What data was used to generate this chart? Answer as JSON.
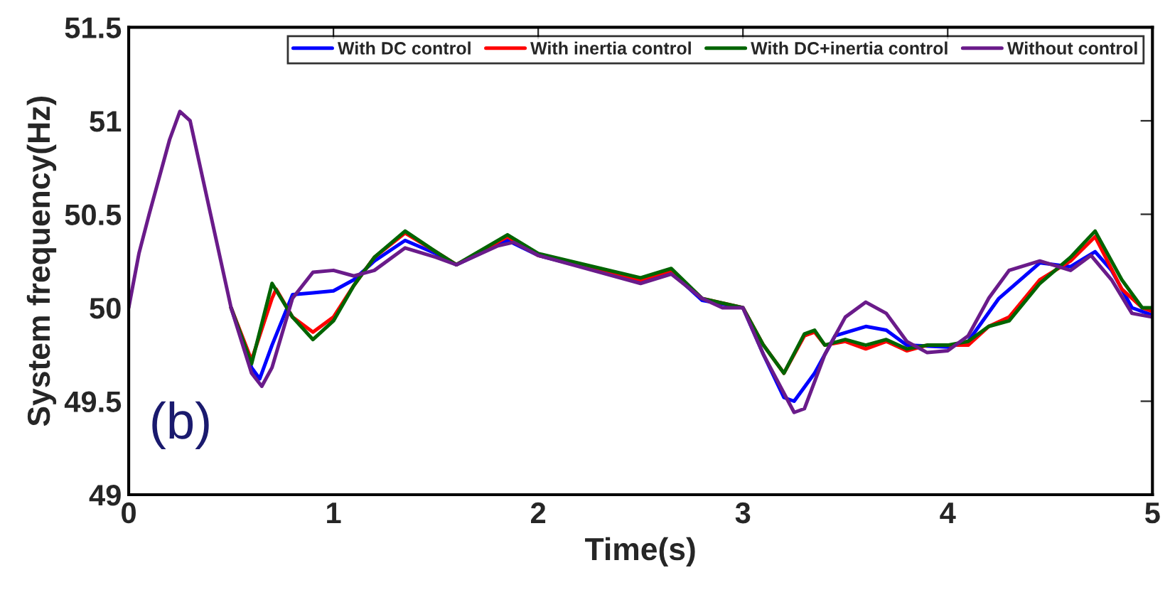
{
  "chart_data": {
    "type": "line",
    "xlabel": "Time(s)",
    "ylabel": "System frequency(Hz)",
    "annotations": [
      "(b)"
    ],
    "xlim": [
      0,
      5
    ],
    "ylim": [
      49,
      51.5
    ],
    "xticks": [
      0,
      1,
      2,
      3,
      4,
      5
    ],
    "yticks": [
      49,
      49.5,
      50,
      50.5,
      51,
      51.5
    ],
    "grid": false,
    "legend": "top right",
    "line_style": "solid",
    "marker": "none",
    "series": [
      {
        "name": "With DC control",
        "color": "#0000ff",
        "x": [
          0.5,
          0.6,
          0.64,
          0.7,
          0.8,
          0.9,
          1.0,
          1.1,
          1.2,
          1.35,
          1.5,
          1.6,
          1.85,
          2.0,
          2.5,
          2.65,
          2.8,
          3.0,
          3.1,
          3.2,
          3.25,
          3.35,
          3.45,
          3.6,
          3.7,
          3.8,
          4.0,
          4.1,
          4.25,
          4.45,
          4.6,
          4.72,
          4.8,
          4.9,
          5.0
        ],
        "values": [
          50.0,
          49.68,
          49.62,
          49.8,
          50.07,
          50.08,
          50.09,
          50.15,
          50.25,
          50.36,
          50.29,
          50.23,
          50.36,
          50.28,
          50.14,
          50.19,
          50.04,
          50.0,
          49.75,
          49.52,
          49.5,
          49.65,
          49.85,
          49.9,
          49.88,
          49.8,
          49.79,
          49.82,
          50.05,
          50.24,
          50.22,
          50.3,
          50.2,
          50.0,
          49.96
        ]
      },
      {
        "name": "With inertia control",
        "color": "#ff0000",
        "x": [
          0.5,
          0.6,
          0.7,
          0.72,
          0.8,
          0.9,
          1.0,
          1.1,
          1.2,
          1.35,
          1.5,
          1.6,
          1.85,
          2.0,
          2.5,
          2.65,
          2.8,
          3.0,
          3.1,
          3.2,
          3.3,
          3.35,
          3.4,
          3.5,
          3.6,
          3.7,
          3.8,
          3.9,
          4.0,
          4.1,
          4.2,
          4.3,
          4.45,
          4.6,
          4.72,
          4.85,
          4.95,
          5.0
        ],
        "values": [
          50.0,
          49.72,
          50.05,
          50.1,
          49.95,
          49.87,
          49.95,
          50.12,
          50.27,
          50.4,
          50.3,
          50.23,
          50.38,
          50.28,
          50.15,
          50.2,
          50.05,
          50.0,
          49.8,
          49.65,
          49.85,
          49.87,
          49.8,
          49.82,
          49.78,
          49.82,
          49.77,
          49.8,
          49.8,
          49.8,
          49.9,
          49.95,
          50.15,
          50.25,
          50.38,
          50.1,
          50.0,
          49.98
        ]
      },
      {
        "name": "With DC+inertia control",
        "color": "#006400",
        "x": [
          0.5,
          0.6,
          0.7,
          0.8,
          0.9,
          1.0,
          1.1,
          1.2,
          1.35,
          1.5,
          1.6,
          1.85,
          2.0,
          2.5,
          2.65,
          2.8,
          3.0,
          3.1,
          3.2,
          3.3,
          3.35,
          3.4,
          3.5,
          3.6,
          3.7,
          3.8,
          3.9,
          4.0,
          4.1,
          4.2,
          4.3,
          4.45,
          4.6,
          4.72,
          4.85,
          4.95,
          5.0
        ],
        "values": [
          50.0,
          49.7,
          50.13,
          49.95,
          49.83,
          49.93,
          50.12,
          50.27,
          50.41,
          50.3,
          50.23,
          50.39,
          50.29,
          50.16,
          50.21,
          50.05,
          50.0,
          49.8,
          49.65,
          49.86,
          49.88,
          49.8,
          49.83,
          49.8,
          49.83,
          49.78,
          49.8,
          49.8,
          49.82,
          49.9,
          49.93,
          50.13,
          50.27,
          50.41,
          50.15,
          50.0,
          50.0
        ]
      },
      {
        "name": "Without control",
        "color": "#6a1b8a",
        "x": [
          0,
          0.05,
          0.1,
          0.2,
          0.25,
          0.3,
          0.4,
          0.5,
          0.6,
          0.65,
          0.7,
          0.8,
          0.9,
          1.0,
          1.1,
          1.2,
          1.35,
          1.5,
          1.6,
          1.8,
          1.88,
          2.0,
          2.2,
          2.5,
          2.65,
          2.8,
          2.9,
          3.0,
          3.1,
          3.25,
          3.3,
          3.4,
          3.5,
          3.6,
          3.7,
          3.8,
          3.9,
          4.0,
          4.1,
          4.2,
          4.3,
          4.45,
          4.6,
          4.7,
          4.8,
          4.9,
          5.0
        ],
        "values": [
          50.0,
          50.29,
          50.5,
          50.9,
          51.05,
          51.0,
          50.5,
          50.0,
          49.65,
          49.58,
          49.68,
          50.05,
          50.19,
          50.2,
          50.17,
          50.2,
          50.32,
          50.27,
          50.23,
          50.33,
          50.35,
          50.28,
          50.22,
          50.13,
          50.18,
          50.05,
          50.0,
          50.0,
          49.75,
          49.44,
          49.46,
          49.75,
          49.95,
          50.03,
          49.97,
          49.82,
          49.76,
          49.77,
          49.85,
          50.05,
          50.2,
          50.25,
          50.2,
          50.28,
          50.15,
          49.97,
          49.95
        ]
      }
    ]
  }
}
